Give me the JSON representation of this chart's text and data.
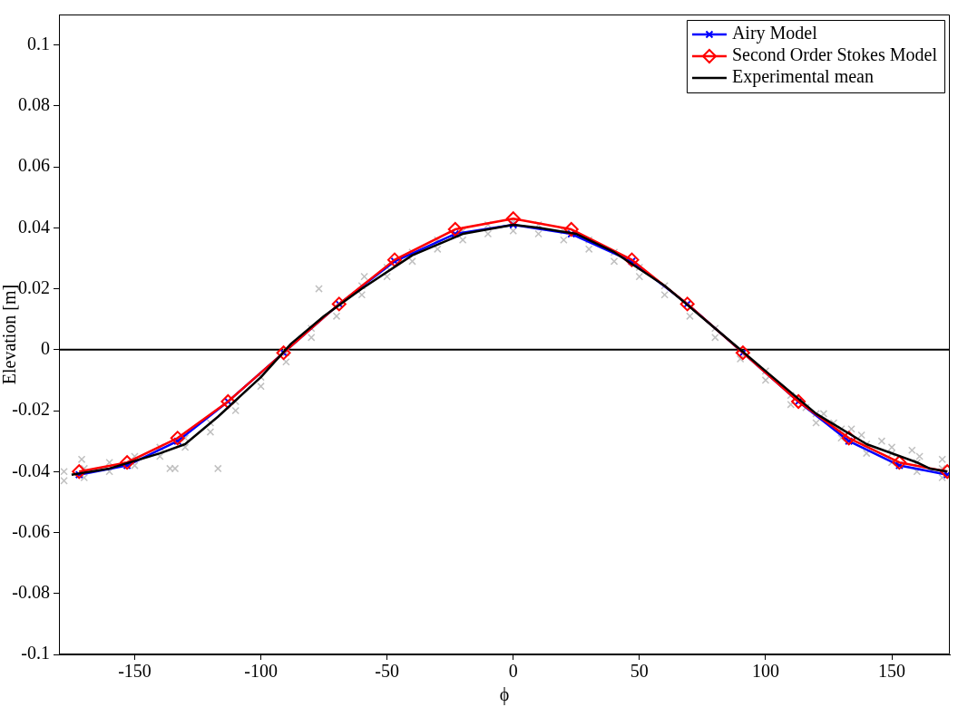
{
  "chart_data": {
    "type": "line",
    "xlabel": "ϕ",
    "ylabel": "Elevation [m]",
    "xlim": [
      -180,
      173
    ],
    "xticks": [
      -150,
      -100,
      -50,
      0,
      50,
      100,
      150
    ],
    "ylim": [
      -0.1,
      0.11
    ],
    "yticks": [
      -0.1,
      -0.08,
      -0.06,
      -0.04,
      -0.02,
      0,
      0.02,
      0.04,
      0.06,
      0.08,
      0.1
    ],
    "grid": false,
    "legend": "top right",
    "ref_lines": [
      {
        "axis": "y",
        "value": 0,
        "color": "#000000"
      }
    ],
    "series": [
      {
        "type": "scatter",
        "color": "#c0c0c0",
        "marker": "cross",
        "x": [
          -178,
          -178,
          -170,
          -170,
          -160,
          -160,
          -150,
          -150,
          -140,
          -140,
          -130,
          -130,
          -120,
          -120,
          -110,
          -110,
          -100,
          -100,
          -90,
          -90,
          -80,
          -80,
          -70,
          -70,
          -60,
          -60,
          -50,
          -50,
          -40,
          -40,
          -30,
          -30,
          -20,
          -20,
          -10,
          -10,
          0,
          0,
          10,
          10,
          20,
          20,
          30,
          30,
          40,
          40,
          50,
          50,
          60,
          60,
          70,
          70,
          80,
          80,
          90,
          90,
          100,
          100,
          110,
          110,
          120,
          120,
          130,
          130,
          140,
          140,
          150,
          150,
          160,
          160,
          170,
          170,
          -171,
          -136,
          -134,
          -117,
          -77,
          -59,
          116,
          123,
          127,
          134,
          138,
          146,
          150,
          158,
          161,
          170
        ],
        "values": [
          -0.043,
          -0.04,
          -0.042,
          -0.039,
          -0.04,
          -0.037,
          -0.038,
          -0.035,
          -0.035,
          -0.032,
          -0.032,
          -0.029,
          -0.027,
          -0.024,
          -0.02,
          -0.017,
          -0.012,
          -0.009,
          -0.004,
          -0.001,
          0.004,
          0.007,
          0.011,
          0.014,
          0.018,
          0.021,
          0.024,
          0.027,
          0.029,
          0.032,
          0.033,
          0.036,
          0.036,
          0.039,
          0.038,
          0.041,
          0.039,
          0.042,
          0.038,
          0.041,
          0.036,
          0.039,
          0.033,
          0.036,
          0.029,
          0.032,
          0.024,
          0.027,
          0.018,
          0.021,
          0.011,
          0.014,
          0.004,
          0.007,
          -0.003,
          0.0,
          -0.01,
          -0.007,
          -0.018,
          -0.015,
          -0.024,
          -0.021,
          -0.029,
          -0.026,
          -0.034,
          -0.031,
          -0.037,
          -0.034,
          -0.04,
          -0.037,
          -0.042,
          -0.039,
          -0.036,
          -0.039,
          -0.039,
          -0.039,
          0.02,
          0.024,
          -0.019,
          -0.021,
          -0.024,
          -0.026,
          -0.028,
          -0.03,
          -0.032,
          -0.033,
          -0.035,
          -0.036
        ]
      },
      {
        "name": "Airy Model",
        "color": "#0000ff",
        "marker": "cross",
        "x": [
          -172,
          -153,
          -133,
          -113,
          -91,
          -69,
          -47,
          -23,
          0,
          23,
          47,
          69,
          91,
          113,
          133,
          153,
          172
        ],
        "values": [
          -0.041,
          -0.038,
          -0.03,
          -0.017,
          -0.001,
          0.015,
          0.029,
          0.038,
          0.041,
          0.038,
          0.029,
          0.015,
          -0.001,
          -0.017,
          -0.03,
          -0.038,
          -0.041
        ]
      },
      {
        "name": "Second Order Stokes Model",
        "color": "#ff0000",
        "marker": "diamond",
        "x": [
          -172,
          -153,
          -133,
          -113,
          -91,
          -69,
          -47,
          -23,
          0,
          23,
          47,
          69,
          91,
          113,
          133,
          153,
          172
        ],
        "values": [
          -0.04,
          -0.037,
          -0.029,
          -0.017,
          -0.001,
          0.015,
          0.0295,
          0.0395,
          0.043,
          0.0395,
          0.0295,
          0.015,
          -0.001,
          -0.017,
          -0.029,
          -0.037,
          -0.04
        ]
      },
      {
        "name": "Experimental mean",
        "color": "#000000",
        "marker": "none",
        "x": [
          -175,
          -160,
          -140,
          -130,
          -117,
          -100,
          -88,
          -75,
          -60,
          -40,
          -20,
          0,
          10,
          25,
          40,
          60,
          80,
          90,
          100,
          120,
          140,
          160,
          165,
          172
        ],
        "values": [
          -0.041,
          -0.039,
          -0.034,
          -0.031,
          -0.022,
          -0.009,
          0.002,
          0.011,
          0.02,
          0.031,
          0.038,
          0.041,
          0.04,
          0.038,
          0.032,
          0.021,
          0.007,
          0.0,
          -0.007,
          -0.021,
          -0.031,
          -0.037,
          -0.039,
          -0.04
        ]
      }
    ]
  }
}
